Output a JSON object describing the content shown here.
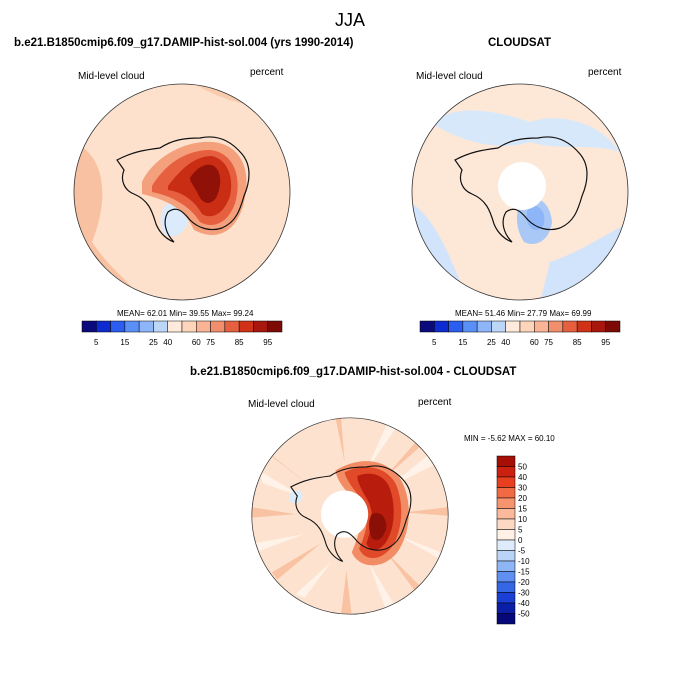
{
  "main_title": "JJA",
  "colors": {
    "coastline": "#111111",
    "border": "#333333",
    "hole": "#ffffff"
  },
  "chart_data": [
    {
      "type": "polar-contour-map",
      "title": "b.e21.B1850cmip6.f09_g17.DAMIP-hist-sol.004 (yrs 1990-2014)",
      "left_label": "Mid-level cloud",
      "right_label": "percent",
      "stats": {
        "mean_label": "MEAN=",
        "mean": "62.01",
        "min_label": "Min=",
        "min": "39.55",
        "max_label": "Max=",
        "max": "99.24"
      },
      "colorbar": {
        "orientation": "horizontal",
        "colors": [
          "#0a0a7a",
          "#0d2bd1",
          "#2b5ef0",
          "#5a8ff5",
          "#8db5f7",
          "#bcd6f7",
          "#ffeadb",
          "#fdd5bb",
          "#f8b494",
          "#f18e6c",
          "#e6603f",
          "#d03218",
          "#a8170d",
          "#7d0a05"
        ],
        "tick_labels": [
          "5",
          "15",
          "25",
          "40",
          "60",
          "75",
          "85",
          "95"
        ]
      },
      "field": {
        "background": "#fde1cd",
        "regions": [
          {
            "name": "outer-ring-west",
            "color": "#f8c2a2"
          },
          {
            "name": "outer-ring-north",
            "color": "#f9cbad"
          },
          {
            "name": "ross-sea-low",
            "color": "#dcebfb"
          },
          {
            "name": "east-antarctic-high-1",
            "color": "#f4a07c"
          },
          {
            "name": "east-antarctic-high-2",
            "color": "#e6603f"
          },
          {
            "name": "east-antarctic-high-3",
            "color": "#c92e14"
          },
          {
            "name": "east-antarctic-peak",
            "color": "#8f1108"
          }
        ]
      }
    },
    {
      "type": "polar-contour-map",
      "title": "CLOUDSAT",
      "left_label": "Mid-level cloud",
      "right_label": "percent",
      "stats": {
        "mean_label": "MEAN=",
        "mean": "51.46",
        "min_label": "Min=",
        "min": "27.79",
        "max_label": "Max=",
        "max": "69.99"
      },
      "colorbar": {
        "orientation": "horizontal",
        "colors": [
          "#0a0a7a",
          "#0d2bd1",
          "#2b5ef0",
          "#5a8ff5",
          "#8db5f7",
          "#bcd6f7",
          "#ffeadb",
          "#fdd5bb",
          "#f8b494",
          "#f18e6c",
          "#e6603f",
          "#d03218",
          "#a8170d",
          "#7d0a05"
        ],
        "tick_labels": [
          "5",
          "15",
          "25",
          "40",
          "60",
          "75",
          "85",
          "95"
        ]
      },
      "field": {
        "background": "#fde8d8",
        "regions": [
          {
            "name": "blue-patches-north",
            "color": "#d8e8fb"
          },
          {
            "name": "blue-patches-south",
            "color": "#d2e4fb"
          },
          {
            "name": "ross-sea-blue",
            "color": "#a9c8f5"
          },
          {
            "name": "ross-sea-core",
            "color": "#8db5f7"
          },
          {
            "name": "no-data-hole",
            "color": "#ffffff"
          }
        ]
      }
    },
    {
      "type": "polar-contour-map",
      "title": "b.e21.B1850cmip6.f09_g17.DAMIP-hist-sol.004 - CLOUDSAT",
      "left_label": "Mid-level cloud",
      "right_label": "percent",
      "stats": {
        "min_label": "MIN =",
        "min": "-5.62",
        "max_label": "MAX =",
        "max": "60.10"
      },
      "colorbar": {
        "orientation": "vertical",
        "colors_top_to_bottom": [
          "#a50f05",
          "#cc2010",
          "#e8401f",
          "#f26a43",
          "#f79470",
          "#fbb99b",
          "#fdd8c2",
          "#fff1e6",
          "#ddebfb",
          "#b9d4f7",
          "#8eb6f4",
          "#5f8ff0",
          "#3466e6",
          "#1b3fd4",
          "#0a1ea8",
          "#06087a"
        ],
        "tick_labels": [
          "50",
          "40",
          "30",
          "20",
          "15",
          "10",
          "5",
          "0",
          "-5",
          "-10",
          "-15",
          "-20",
          "-30",
          "-40",
          "-50"
        ]
      },
      "field": {
        "background": "#fde2d0",
        "regions": [
          {
            "name": "streaks-light",
            "color": "#fff2e8"
          },
          {
            "name": "streaks-medium",
            "color": "#f9c3a3"
          },
          {
            "name": "coast-blue",
            "color": "#dcebfb"
          },
          {
            "name": "east-antarctic-diff-1",
            "color": "#f28c64"
          },
          {
            "name": "east-antarctic-diff-2",
            "color": "#e04a28"
          },
          {
            "name": "east-antarctic-diff-3",
            "color": "#b81c0c"
          },
          {
            "name": "east-antarctic-diff-peak",
            "color": "#8a0f06"
          },
          {
            "name": "no-data-hole",
            "color": "#ffffff"
          }
        ]
      }
    }
  ]
}
